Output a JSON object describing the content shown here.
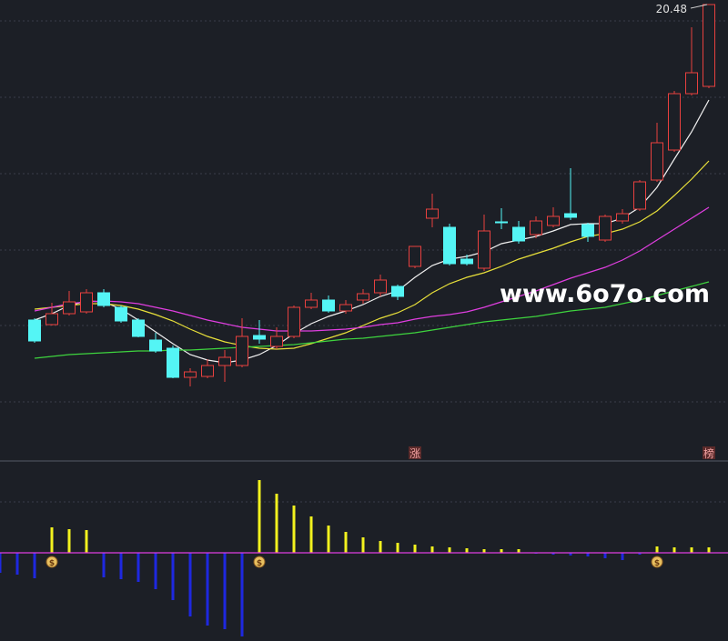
{
  "chart_data": [
    {
      "type": "candlestick",
      "ylim": [
        0.48,
        20.68
      ],
      "grid": true,
      "up_color": "#e8403f",
      "down_color": "#54f5f5",
      "open": [
        6.6,
        6.4,
        6.88,
        6.96,
        7.8,
        7.16,
        6.6,
        5.72,
        5.36,
        4.08,
        4.12,
        4.6,
        4.6,
        5.92,
        5.44,
        5.88,
        7.16,
        7.48,
        7.0,
        7.48,
        7.8,
        8.08,
        8.96,
        11.08,
        10.68,
        9.28,
        8.88,
        10.92,
        10.68,
        10.36,
        10.76,
        11.28,
        10.8,
        10.12,
        10.96,
        11.48,
        12.76,
        14.08,
        16.56,
        16.88
      ],
      "close": [
        5.68,
        6.88,
        7.4,
        7.8,
        7.24,
        6.56,
        5.88,
        5.24,
        4.08,
        4.32,
        4.6,
        4.96,
        5.88,
        5.76,
        5.88,
        7.16,
        7.48,
        7.0,
        7.28,
        7.76,
        8.36,
        7.64,
        9.84,
        11.48,
        9.08,
        9.08,
        10.52,
        10.88,
        10.08,
        10.96,
        11.16,
        11.12,
        10.28,
        11.16,
        11.28,
        12.68,
        14.4,
        16.56,
        17.48,
        20.48
      ],
      "high": [
        6.68,
        7.36,
        7.88,
        7.96,
        7.96,
        7.24,
        6.68,
        6.04,
        5.48,
        4.48,
        4.88,
        5.28,
        6.68,
        6.6,
        6.28,
        7.24,
        7.8,
        7.68,
        7.48,
        7.96,
        8.6,
        8.16,
        9.84,
        12.16,
        10.84,
        9.48,
        11.24,
        11.52,
        10.96,
        11.16,
        11.56,
        13.28,
        10.88,
        11.24,
        11.48,
        12.76,
        15.28,
        16.68,
        19.48,
        20.48
      ],
      "low": [
        5.6,
        6.36,
        6.8,
        6.88,
        7.16,
        6.48,
        5.84,
        5.16,
        4.04,
        3.68,
        4.04,
        3.88,
        4.52,
        5.56,
        5.32,
        5.8,
        7.08,
        6.92,
        6.88,
        7.32,
        7.64,
        7.48,
        8.88,
        10.68,
        9.0,
        9.0,
        8.76,
        10.6,
        9.96,
        10.2,
        10.68,
        11.0,
        10.04,
        10.04,
        10.84,
        11.4,
        12.68,
        14.0,
        16.48,
        16.8
      ],
      "signals": [
        null,
        null,
        null,
        null,
        null,
        null,
        null,
        null,
        null,
        null,
        null,
        null,
        null,
        null,
        null,
        null,
        null,
        null,
        null,
        null,
        null,
        null,
        "涨",
        null,
        null,
        null,
        null,
        null,
        null,
        null,
        null,
        null,
        null,
        null,
        null,
        null,
        null,
        null,
        null,
        "榜"
      ],
      "series": [
        {
          "name": "MA5",
          "color": "#f0f0f0",
          "values": [
            6.6,
            6.88,
            7.24,
            7.44,
            7.4,
            7.08,
            6.6,
            6.08,
            5.56,
            5.08,
            4.84,
            4.72,
            4.84,
            5.08,
            5.48,
            6.0,
            6.44,
            6.76,
            7.0,
            7.28,
            7.64,
            7.88,
            8.48,
            9.0,
            9.28,
            9.4,
            9.6,
            9.96,
            10.12,
            10.28,
            10.52,
            10.8,
            10.84,
            10.84,
            11.08,
            11.56,
            12.44,
            13.68,
            14.88,
            16.28
          ]
        },
        {
          "name": "MA10",
          "color": "#e8e03a",
          "values": [
            7.08,
            7.16,
            7.24,
            7.32,
            7.32,
            7.24,
            7.08,
            6.84,
            6.56,
            6.2,
            5.88,
            5.64,
            5.48,
            5.36,
            5.32,
            5.36,
            5.56,
            5.8,
            6.04,
            6.36,
            6.68,
            6.92,
            7.28,
            7.8,
            8.2,
            8.48,
            8.68,
            8.96,
            9.28,
            9.52,
            9.76,
            10.04,
            10.28,
            10.4,
            10.6,
            10.92,
            11.4,
            12.08,
            12.8,
            13.6
          ]
        },
        {
          "name": "MA20",
          "color": "#e03ee0",
          "values": [
            7.0,
            7.16,
            7.32,
            7.4,
            7.44,
            7.4,
            7.32,
            7.16,
            7.0,
            6.8,
            6.6,
            6.44,
            6.28,
            6.2,
            6.12,
            6.12,
            6.12,
            6.16,
            6.2,
            6.28,
            6.4,
            6.48,
            6.64,
            6.76,
            6.84,
            6.96,
            7.16,
            7.4,
            7.64,
            7.88,
            8.16,
            8.44,
            8.68,
            8.92,
            9.24,
            9.64,
            10.12,
            10.6,
            11.08,
            11.56
          ]
        },
        {
          "name": "MA60",
          "color": "#3ed43e",
          "values": [
            4.92,
            5.0,
            5.08,
            5.12,
            5.16,
            5.2,
            5.24,
            5.24,
            5.28,
            5.28,
            5.32,
            5.36,
            5.4,
            5.44,
            5.48,
            5.52,
            5.6,
            5.68,
            5.76,
            5.8,
            5.88,
            5.96,
            6.04,
            6.16,
            6.28,
            6.4,
            6.52,
            6.6,
            6.68,
            6.76,
            6.88,
            7.0,
            7.08,
            7.16,
            7.32,
            7.48,
            7.68,
            7.88,
            8.08,
            8.28
          ]
        }
      ],
      "watermark": "www.6o7o.com"
    },
    {
      "type": "bar",
      "ylim": [
        -97,
        98
      ],
      "positive_color": "#f2f21e",
      "negative_color": "#1e28e0",
      "zero_color": "#e03ee0",
      "values": [
        -22,
        -24,
        -28,
        28,
        26,
        25,
        -27,
        -29,
        -32,
        -40,
        -52,
        -70,
        -80,
        -84,
        -92,
        80,
        65,
        52,
        40,
        30,
        23,
        17,
        13,
        11,
        9,
        7,
        6,
        5,
        4,
        4,
        4,
        -1,
        -2,
        -3,
        -4,
        -6,
        -8,
        -2,
        7,
        6,
        6,
        6
      ],
      "signals": [
        null,
        null,
        null,
        "$",
        null,
        null,
        null,
        null,
        null,
        null,
        null,
        null,
        null,
        null,
        null,
        "$",
        null,
        null,
        null,
        null,
        null,
        null,
        null,
        null,
        null,
        null,
        null,
        null,
        null,
        null,
        null,
        null,
        null,
        null,
        null,
        null,
        null,
        null,
        "$",
        null,
        null,
        null
      ]
    }
  ]
}
